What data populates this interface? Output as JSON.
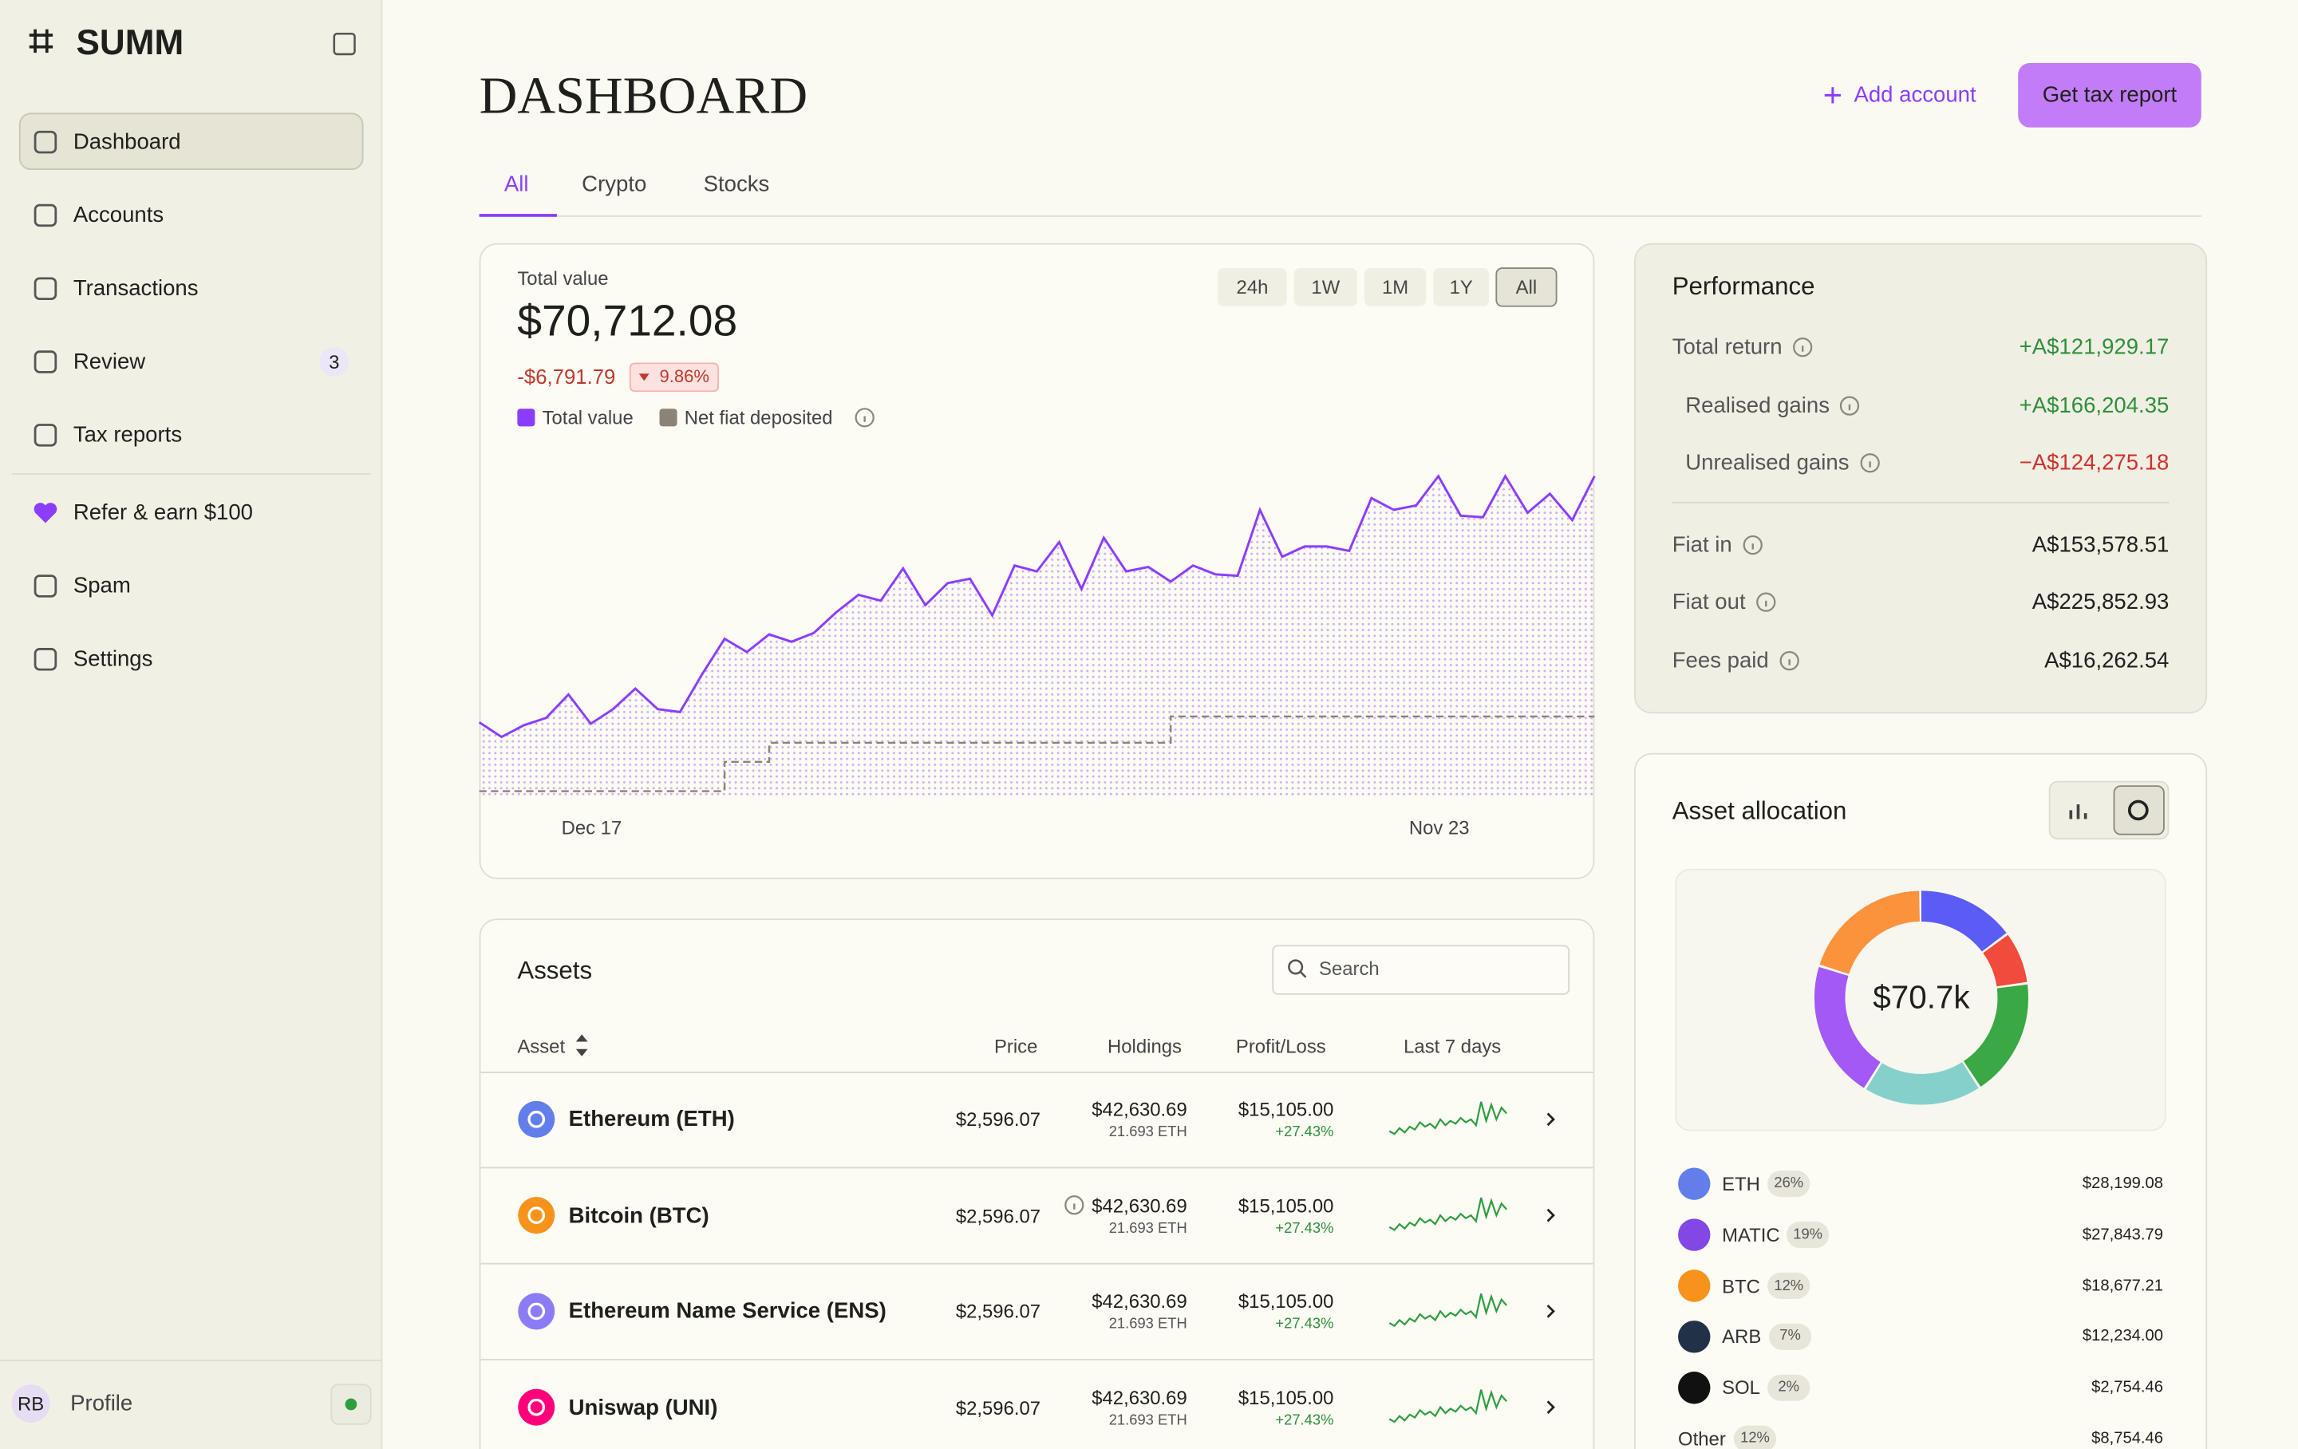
{
  "sidebar": {
    "logo": "SUMM",
    "nav": [
      "Dashboard",
      "Accounts",
      "Transactions",
      "Review",
      "Tax reports"
    ],
    "review_badge": "3",
    "extra": [
      "Refer & earn $100",
      "Spam",
      "Settings"
    ],
    "profile_initials": "RB",
    "profile": "Profile"
  },
  "header": {
    "title": "DASHBOARD",
    "add_account": "Add account",
    "tax_report": "Get tax report",
    "tabs": [
      "All",
      "Crypto",
      "Stocks"
    ]
  },
  "value_card": {
    "label": "Total value",
    "value": "$70,712.08",
    "change": "-$6,791.79",
    "change_pct": "9.86%",
    "ranges": [
      "24h",
      "1W",
      "1M",
      "1Y",
      "All"
    ]
  },
  "chart_data": {
    "type": "line",
    "categories": [
      null,
      null,
      null,
      "Dec 17",
      null,
      null,
      null,
      null,
      null,
      null,
      null,
      null,
      null,
      null,
      null,
      null,
      null,
      null,
      null,
      null,
      null,
      null,
      null,
      null,
      null,
      null,
      null,
      null,
      null,
      null,
      null,
      null,
      null,
      null,
      null,
      null,
      null,
      null,
      null,
      null,
      null,
      "Nov 23",
      null,
      null,
      null,
      null,
      null,
      null,
      null,
      null,
      null
    ],
    "series": [
      {
        "name": "Total value",
        "color": "#8b3dff",
        "values": [
          52,
          42,
          50,
          55,
          71,
          51,
          61,
          75,
          61,
          59,
          85,
          109,
          100,
          112,
          107,
          113,
          127,
          139,
          135,
          157,
          132,
          147,
          150,
          125,
          159,
          155,
          175,
          143,
          178,
          155,
          158,
          148,
          159,
          153,
          152,
          197,
          165,
          172,
          172,
          169,
          205,
          197,
          200,
          220,
          193,
          192,
          220,
          195,
          208,
          190,
          220
        ]
      },
      {
        "name": "Net fiat deposited",
        "color": "#8c8377",
        "values": [
          5,
          5,
          5,
          5,
          5,
          5,
          5,
          5,
          5,
          5,
          5,
          25,
          25,
          38,
          38,
          38,
          38,
          38,
          38,
          38,
          38,
          38,
          38,
          38,
          38,
          38,
          38,
          38,
          38,
          38,
          38,
          56,
          56,
          56,
          56,
          56,
          56,
          56,
          56,
          56,
          56,
          56,
          56,
          56,
          56,
          56,
          56,
          56,
          56,
          56,
          56
        ]
      }
    ],
    "ylim": [
      0,
      225
    ]
  },
  "performance": {
    "title": "Performance",
    "rows": [
      {
        "label": "Total return",
        "value": "+A$121,929.17"
      },
      {
        "label": "Realised gains",
        "value": "+A$166,204.35"
      },
      {
        "label": "Unrealised gains",
        "value": "−A$124,275.18"
      },
      {
        "label": "Fiat in",
        "value": "A$153,578.51"
      },
      {
        "label": "Fiat out",
        "value": "A$225,852.93"
      },
      {
        "label": "Fees paid",
        "value": "A$16,262.54"
      }
    ]
  },
  "assets": {
    "title": "Assets",
    "search": "Search",
    "columns": [
      "Asset",
      "Price",
      "Holdings",
      "Profit/Loss",
      "Last 7 days"
    ],
    "rows": [
      {
        "name": "Ethereum (ETH)",
        "price": "$2,596.07",
        "holdings": "$42,630.69",
        "amount": "21.693 ETH",
        "pl": "$15,105.00",
        "pl_pct": "+27.43%",
        "color": "#627eea"
      },
      {
        "name": "Bitcoin (BTC)",
        "price": "$2,596.07",
        "holdings": "$42,630.69",
        "amount": "21.693 ETH",
        "pl": "$15,105.00",
        "pl_pct": "+27.43%",
        "color": "#f7931a"
      },
      {
        "name": "Ethereum Name Service (ENS)",
        "price": "$2,596.07",
        "holdings": "$42,630.69",
        "amount": "21.693 ETH",
        "pl": "$15,105.00",
        "pl_pct": "+27.43%",
        "color": "#8b7cf6"
      },
      {
        "name": "Uniswap (UNI)",
        "price": "$2,596.07",
        "holdings": "$42,630.69",
        "amount": "21.693 ETH",
        "pl": "$15,105.00",
        "pl_pct": "+27.43%",
        "color": "#ff007a"
      }
    ],
    "sparkline": [
      6,
      4,
      8,
      5,
      9,
      7,
      12,
      9,
      11,
      8,
      14,
      10,
      13,
      11,
      15,
      12,
      14,
      10,
      26,
      13,
      24,
      14,
      22,
      18
    ],
    "sparkline_ylim": [
      0,
      28
    ],
    "sparkline_color": "#2e9e3e"
  },
  "allocation": {
    "title": "Asset allocation",
    "center": "$70.7k",
    "donut": [
      {
        "color": "#5b5bf5",
        "value": 15
      },
      {
        "color": "#f04b3c",
        "value": 8
      },
      {
        "color": "#3aa845",
        "value": 18
      },
      {
        "color": "#86d0cc",
        "value": 18
      },
      {
        "color": "#a259f5",
        "value": 21
      },
      {
        "color": "#fb923c",
        "value": 20
      }
    ],
    "items": [
      {
        "symbol": "ETH",
        "pct": "26%",
        "value": "$28,199.08",
        "color": "#627eea"
      },
      {
        "symbol": "MATIC",
        "pct": "19%",
        "value": "$27,843.79",
        "color": "#8247e5"
      },
      {
        "symbol": "BTC",
        "pct": "12%",
        "value": "$18,677.21",
        "color": "#f7931a"
      },
      {
        "symbol": "ARB",
        "pct": "7%",
        "value": "$12,234.00",
        "color": "#213147"
      },
      {
        "symbol": "SOL",
        "pct": "2%",
        "value": "$2,754.46",
        "color": "#111111"
      },
      {
        "symbol": "Other",
        "pct": "12%",
        "value": "$8,754.46",
        "color": null
      }
    ]
  }
}
